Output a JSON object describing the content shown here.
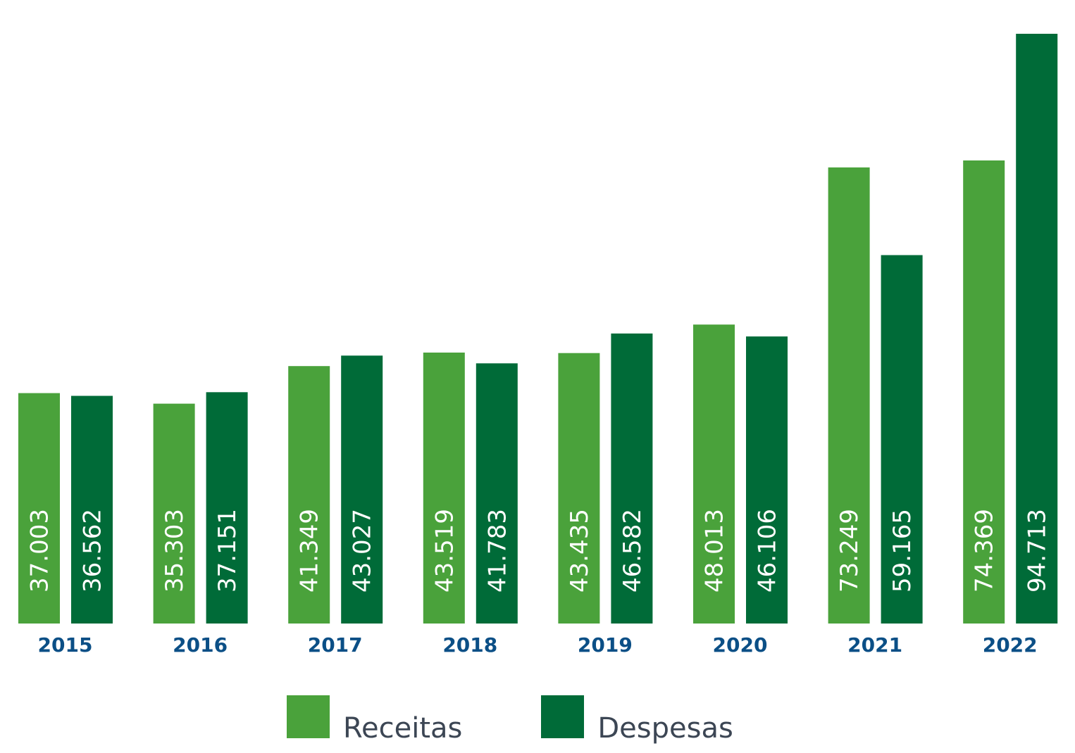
{
  "chart_data": {
    "type": "bar",
    "categories": [
      "2015",
      "2016",
      "2017",
      "2018",
      "2019",
      "2020",
      "2021",
      "2022"
    ],
    "series": [
      {
        "name": "Receitas",
        "color": "#4aa23b",
        "values": [
          37003,
          35303,
          41349,
          43519,
          43435,
          48013,
          73249,
          74369
        ],
        "labels": [
          "37.003",
          "35.303",
          "41.349",
          "43.519",
          "43.435",
          "48.013",
          "73.249",
          "74.369"
        ]
      },
      {
        "name": "Despesas",
        "color": "#006b38",
        "values": [
          36562,
          37151,
          43027,
          41783,
          46582,
          46106,
          59165,
          94713
        ],
        "labels": [
          "36.562",
          "37.151",
          "43.027",
          "41.783",
          "46.582",
          "46.106",
          "59.165",
          "94.713"
        ]
      }
    ],
    "legend_position": "bottom",
    "grid": false,
    "category_label_color": "#0b4f86",
    "data_label_color": "#ffffff"
  }
}
